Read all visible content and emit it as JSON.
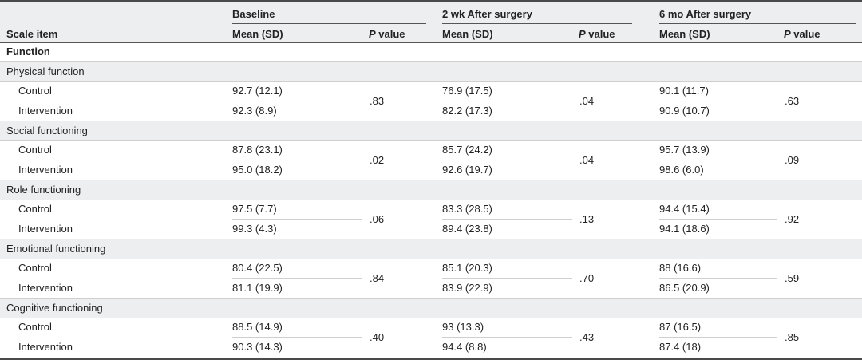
{
  "header": {
    "scale_item": "Scale item",
    "groups": [
      {
        "title": "Baseline",
        "mean_label": "Mean (SD)",
        "p_label_italic": "P",
        "p_label_rest": " value"
      },
      {
        "title": "2 wk After surgery",
        "mean_label": "Mean (SD)",
        "p_label_italic": "P",
        "p_label_rest": " value"
      },
      {
        "title": "6 mo After surgery",
        "mean_label": "Mean (SD)",
        "p_label_italic": "P",
        "p_label_rest": " value"
      }
    ]
  },
  "section": "Function",
  "rows": [
    {
      "name": "Physical function",
      "control_label": "Control",
      "intervention_label": "Intervention",
      "control": [
        "92.7 (12.1)",
        "76.9 (17.5)",
        "90.1 (11.7)"
      ],
      "intervention": [
        "92.3 (8.9)",
        "82.2 (17.3)",
        "90.9 (10.7)"
      ],
      "p": [
        ".83",
        ".04",
        ".63"
      ]
    },
    {
      "name": "Social functioning",
      "control_label": "Control",
      "intervention_label": "Intervention",
      "control": [
        "87.8 (23.1)",
        "85.7 (24.2)",
        "95.7 (13.9)"
      ],
      "intervention": [
        "95.0 (18.2)",
        "92.6 (19.7)",
        "98.6 (6.0)"
      ],
      "p": [
        ".02",
        ".04",
        ".09"
      ]
    },
    {
      "name": "Role functioning",
      "control_label": "Control",
      "intervention_label": "Intervention",
      "control": [
        "97.5 (7.7)",
        "83.3 (28.5)",
        "94.4 (15.4)"
      ],
      "intervention": [
        "99.3 (4.3)",
        "89.4 (23.8)",
        "94.1 (18.6)"
      ],
      "p": [
        ".06",
        ".13",
        ".92"
      ]
    },
    {
      "name": "Emotional functioning",
      "control_label": "Control",
      "intervention_label": "Intervention",
      "control": [
        "80.4 (22.5)",
        "85.1 (20.3)",
        "88 (16.6)"
      ],
      "intervention": [
        "81.1 (19.9)",
        "83.9 (22.9)",
        "86.5 (20.9)"
      ],
      "p": [
        ".84",
        ".70",
        ".59"
      ]
    },
    {
      "name": "Cognitive functioning",
      "control_label": "Control",
      "intervention_label": "Intervention",
      "control": [
        "88.5 (14.9)",
        "93 (13.3)",
        "87 (16.5)"
      ],
      "intervention": [
        "90.3 (14.3)",
        "94.4 (8.8)",
        "87.4 (18)"
      ],
      "p": [
        ".40",
        ".43",
        ".85"
      ]
    }
  ],
  "colors": {
    "band": "#eceef0",
    "rule": "#cfcfcf",
    "dark_rule": "#555555"
  }
}
